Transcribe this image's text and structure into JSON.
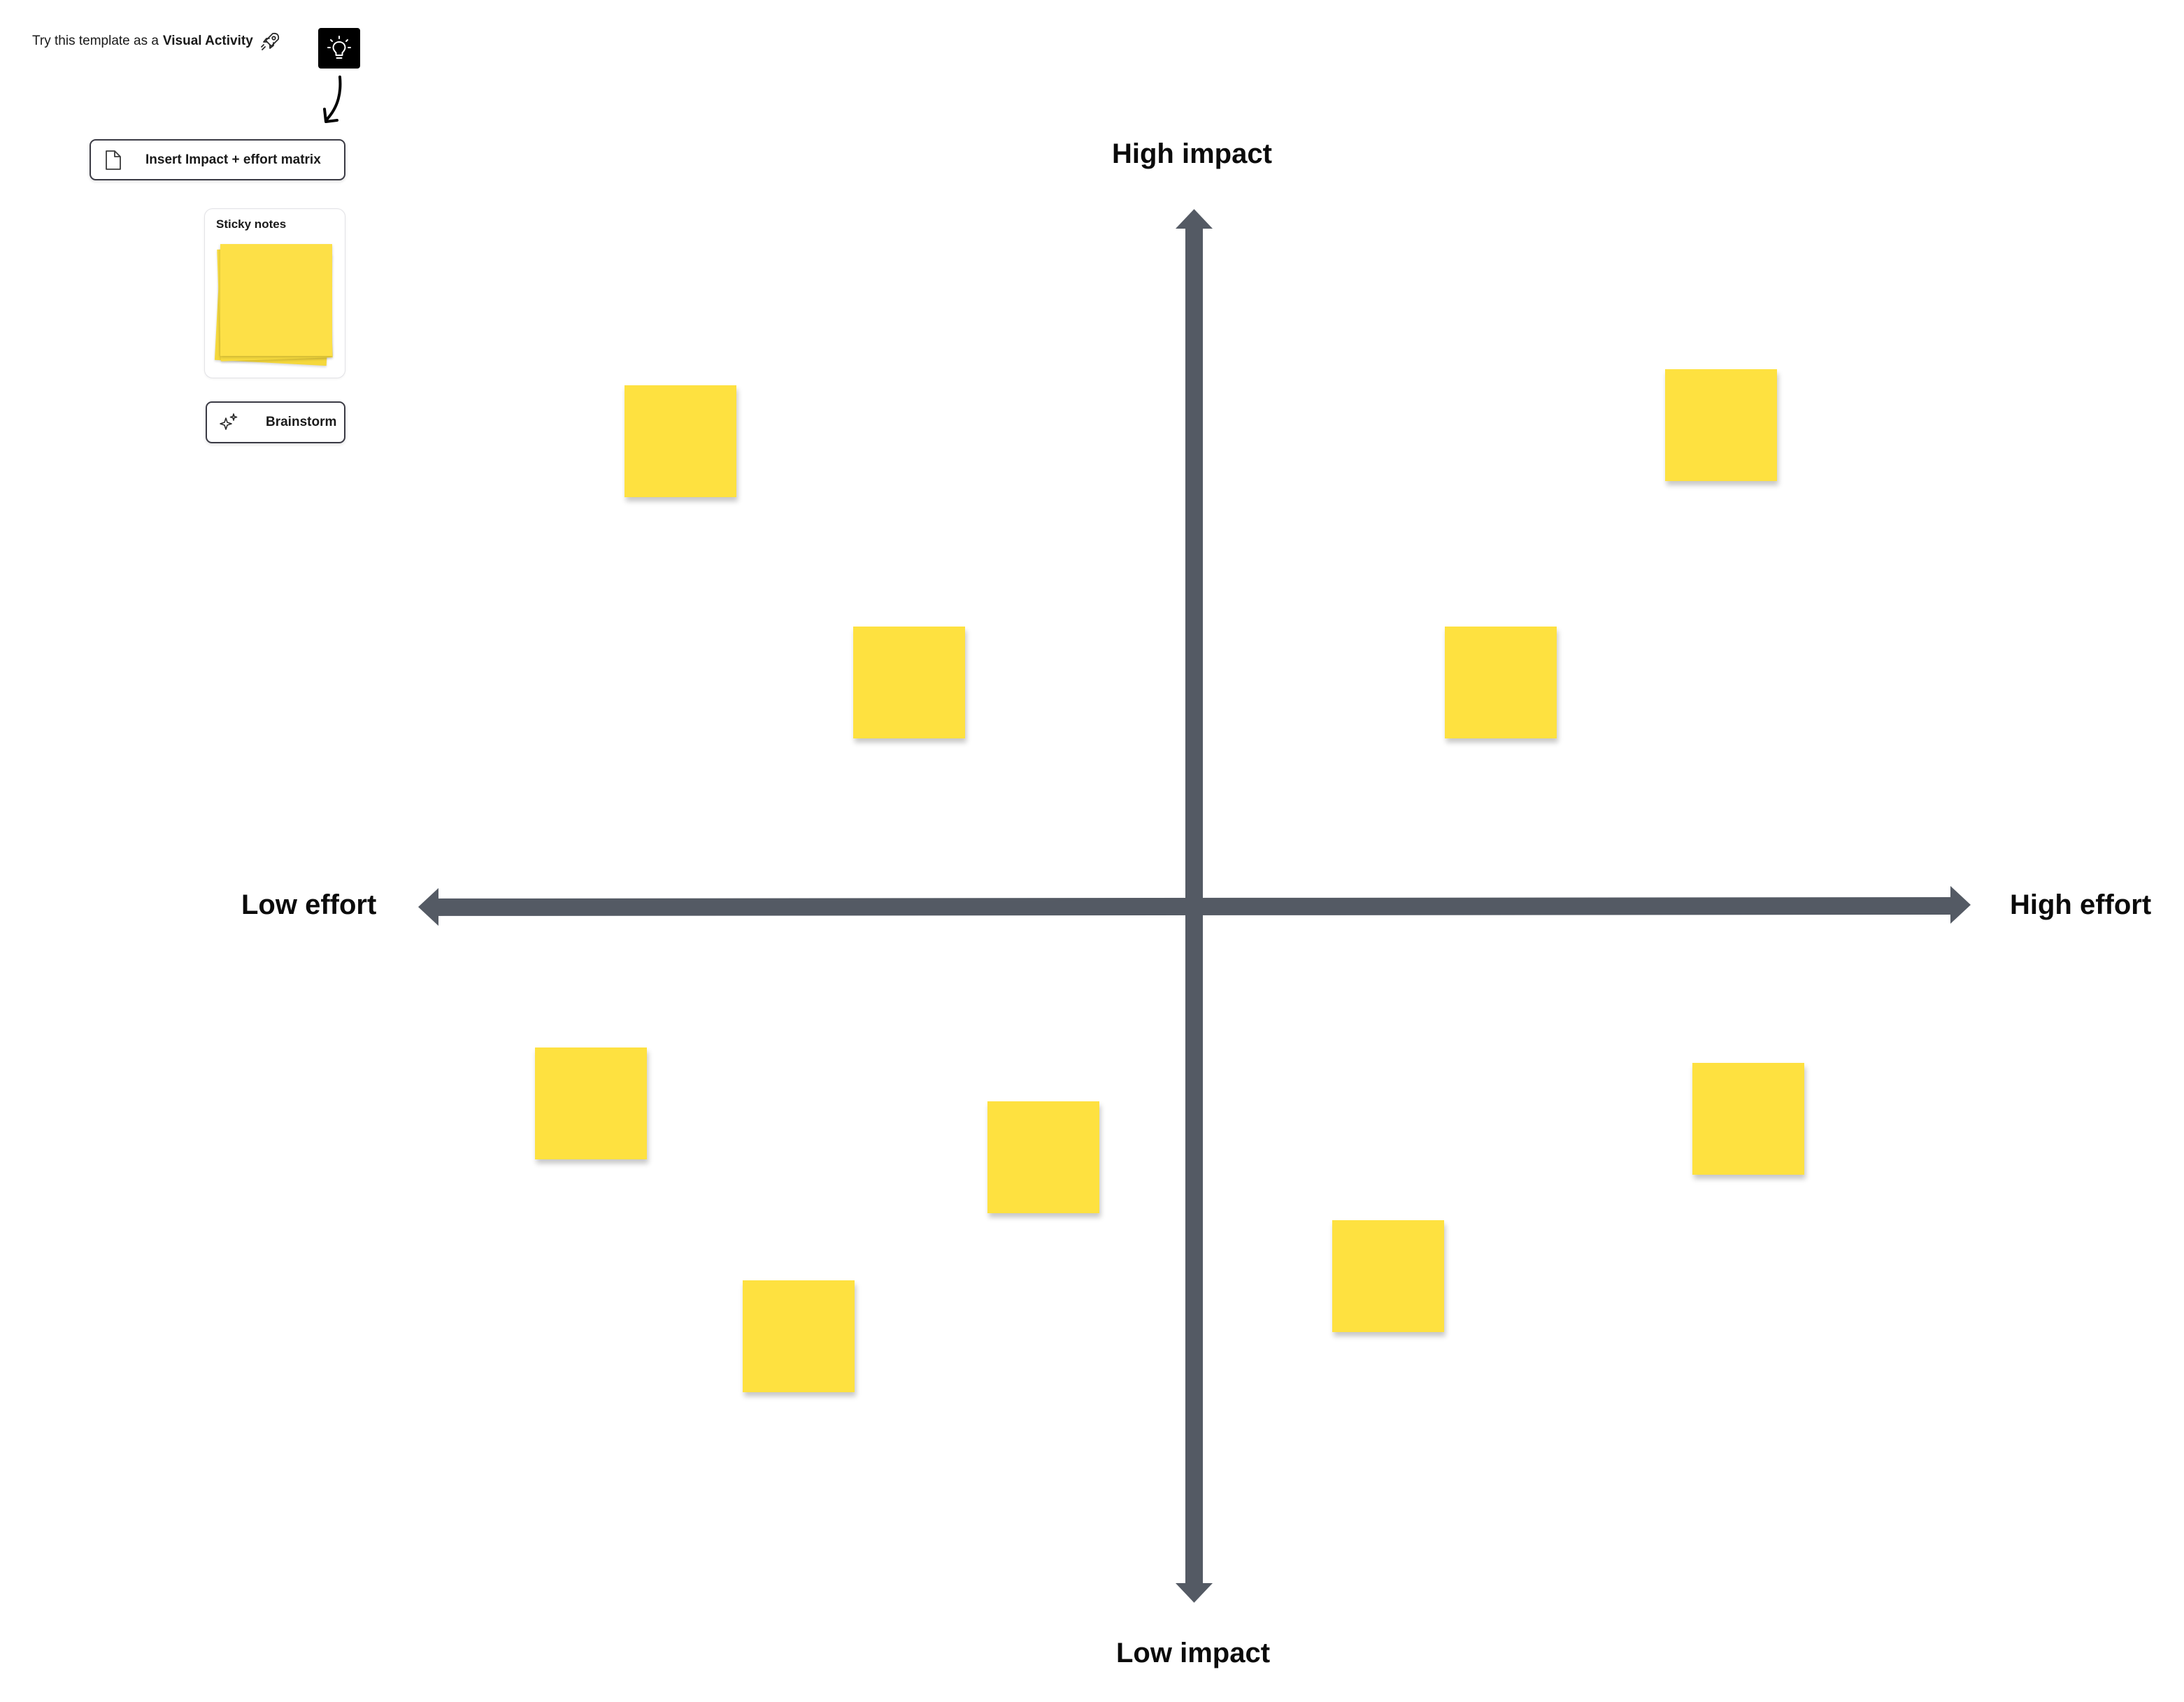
{
  "promo": {
    "prefix": "Try this template as a",
    "strong": "Visual Activity",
    "rocket_icon": "rocket-icon",
    "action_icon": "lightbulb-icon"
  },
  "toolbar": {
    "insert_label": "Insert Impact + effort matrix",
    "insert_icon": "document-icon",
    "sticky_card_title": "Sticky notes",
    "brainstorm_label": "Brainstorm",
    "brainstorm_icon": "sparkles-icon"
  },
  "matrix": {
    "top_label": "High impact",
    "bottom_label": "Low impact",
    "left_label": "Low effort",
    "right_label": "High effort",
    "axis_color": "#545a64"
  },
  "colors": {
    "sticky": "#fee140",
    "canvas": "#ffffff"
  }
}
